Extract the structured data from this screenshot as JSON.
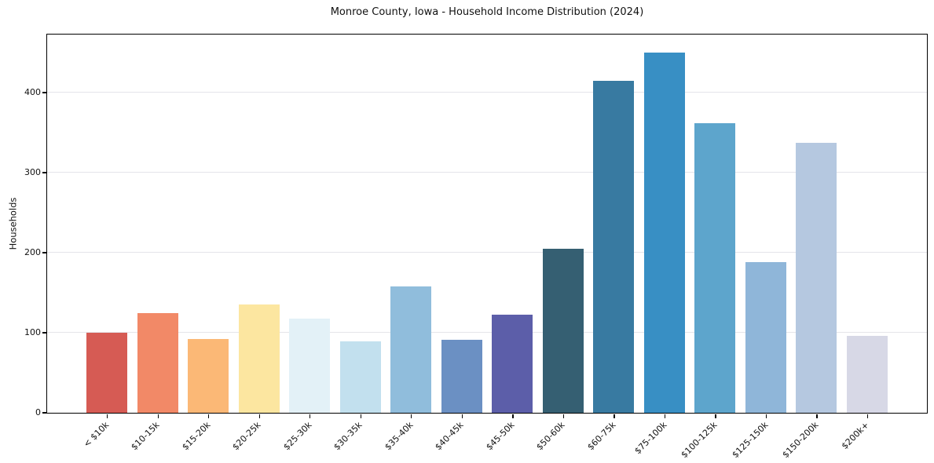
{
  "chart_data": {
    "type": "bar",
    "title": "Monroe County, Iowa - Household Income Distribution (2024)",
    "xlabel": "",
    "ylabel": "Households",
    "categories": [
      "< $10k",
      "$10-15k",
      "$15-20k",
      "$20-25k",
      "$25-30k",
      "$30-35k",
      "$35-40k",
      "$40-45k",
      "$45-50k",
      "$50-60k",
      "$60-75k",
      "$75-100k",
      "$100-125k",
      "$125-150k",
      "$150-200k",
      "$200k+"
    ],
    "values": [
      100,
      125,
      92,
      135,
      118,
      89,
      158,
      91,
      123,
      205,
      415,
      450,
      362,
      188,
      337,
      96
    ],
    "bar_colors": [
      "#d65b54",
      "#f28967",
      "#fbb876",
      "#fce6a0",
      "#e3f1f7",
      "#c2e0ee",
      "#90bddc",
      "#6b90c3",
      "#5c5ea9",
      "#355f72",
      "#387aa1",
      "#388fc4",
      "#5da5cc",
      "#8fb6d9",
      "#b5c8e0",
      "#d7d8e6"
    ],
    "yticks": [
      0,
      100,
      200,
      300,
      400
    ],
    "ylim": [
      0,
      472.5
    ],
    "grid": "horizontal",
    "grid_color": "#e5e5ea",
    "axis_color": "#000000",
    "background_color": "#ffffff",
    "legend": "none"
  }
}
